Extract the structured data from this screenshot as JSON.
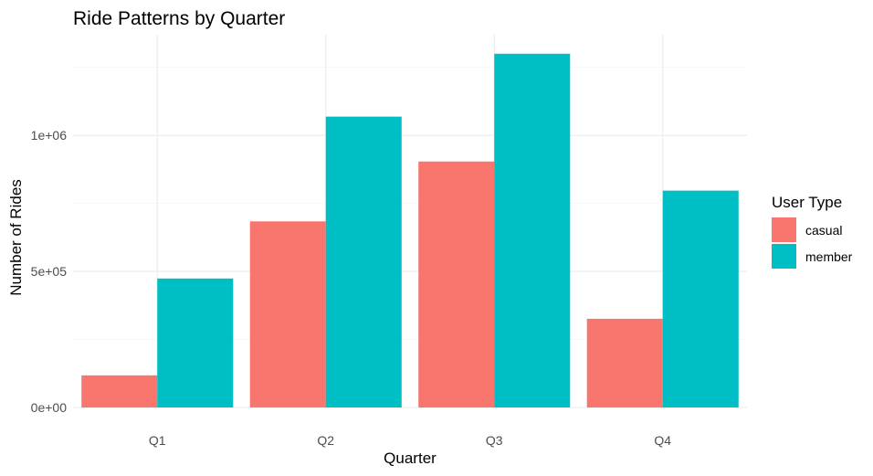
{
  "chart_data": {
    "type": "bar",
    "title": "Ride Patterns by Quarter",
    "xlabel": "Quarter",
    "ylabel": "Number of Rides",
    "categories": [
      "Q1",
      "Q2",
      "Q3",
      "Q4"
    ],
    "series": [
      {
        "name": "casual",
        "color": "#F8766D",
        "values": [
          118000,
          684000,
          904000,
          326000
        ]
      },
      {
        "name": "member",
        "color": "#00BFC4",
        "values": [
          474000,
          1069000,
          1300000,
          797000
        ]
      }
    ],
    "ylim": [
      0,
      1370000
    ],
    "yticks": [
      {
        "value": 0,
        "label": "0e+00"
      },
      {
        "value": 500000,
        "label": "5e+05"
      },
      {
        "value": 1000000,
        "label": "1e+06"
      }
    ],
    "grid": true,
    "legend": {
      "title": "User Type",
      "position": "right"
    }
  }
}
